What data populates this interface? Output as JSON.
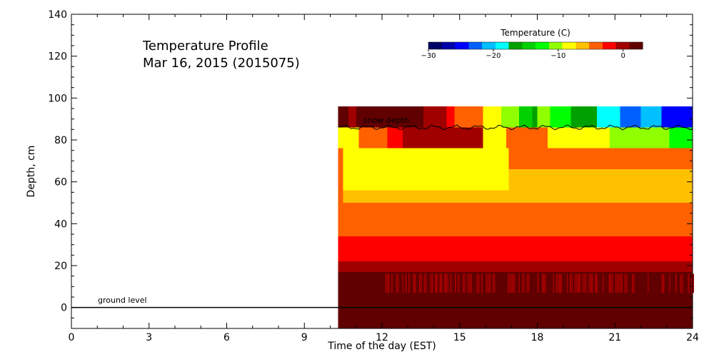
{
  "chart_data": {
    "type": "heatmap",
    "title_line1": "Temperature Profile",
    "title_line2": "Mar 16, 2015 (2015075)",
    "xlabel": "Time of the day (EST)",
    "ylabel": "Depth, cm",
    "xlim": [
      0,
      24
    ],
    "ylim": [
      -10,
      140
    ],
    "x_ticks": [
      0,
      3,
      6,
      9,
      12,
      15,
      18,
      21,
      24
    ],
    "y_ticks": [
      0,
      20,
      40,
      60,
      80,
      100,
      120,
      140
    ],
    "data_start_time": 10.3,
    "data_end_time": 24,
    "top_of_profile": 96,
    "colorbar": {
      "title": "Temperature (C)",
      "min": -30,
      "max": 3,
      "ticks": [
        -30,
        -20,
        -10,
        0
      ],
      "colors": [
        "#000066",
        "#0000a8",
        "#0000ff",
        "#0060ff",
        "#00c0ff",
        "#00ffff",
        "#00a000",
        "#00d000",
        "#00ff00",
        "#90ff00",
        "#ffff00",
        "#ffc000",
        "#ff6000",
        "#ff0000",
        "#a00000",
        "#600000"
      ]
    },
    "ground_level": {
      "depth": 0,
      "label": "ground level"
    },
    "snow_depth": {
      "label": "snow depth",
      "approx_depth": 86
    },
    "layers": [
      {
        "y0": -10,
        "y1": 7,
        "temp": 1.5
      },
      {
        "y0": 7,
        "y1": 17,
        "temp": 1.0,
        "variable": true
      },
      {
        "y0": 17,
        "y1": 22,
        "temp": -0.5
      },
      {
        "y0": 22,
        "y1": 34,
        "temp": -2
      },
      {
        "y0": 34,
        "y1": 50,
        "temp": -5
      },
      {
        "y0": 50,
        "y1": 76,
        "temp": -6
      },
      {
        "y0": 76,
        "y1": 86,
        "temp": -8
      }
    ],
    "segments": {
      "layer_50_76": [
        {
          "t0": 10.3,
          "t1": 10.5,
          "temp": -5
        },
        {
          "t0": 10.5,
          "t1": 16.9,
          "temp": -8,
          "y0": 56
        },
        {
          "t0": 16.9,
          "t1": 24,
          "temp": -5,
          "y0": 66
        }
      ],
      "layer_76_86": [
        {
          "t0": 10.3,
          "t1": 11.1,
          "temp": -8
        },
        {
          "t0": 11.1,
          "t1": 12.2,
          "temp": -5
        },
        {
          "t0": 12.2,
          "t1": 12.8,
          "temp": -2
        },
        {
          "t0": 12.8,
          "t1": 13.4,
          "temp": -1
        },
        {
          "t0": 13.4,
          "t1": 15.3,
          "temp": 0
        },
        {
          "t0": 15.3,
          "t1": 15.9,
          "temp": -1
        },
        {
          "t0": 15.9,
          "t1": 16.8,
          "temp": -8
        },
        {
          "t0": 16.8,
          "t1": 18.4,
          "temp": -5
        },
        {
          "t0": 18.4,
          "t1": 20.8,
          "temp": -8
        },
        {
          "t0": 20.8,
          "t1": 23.1,
          "temp": -11
        },
        {
          "t0": 23.1,
          "t1": 24,
          "temp": -12
        }
      ],
      "surface_86_96": [
        {
          "t0": 10.3,
          "t1": 10.7,
          "temp": 1.5
        },
        {
          "t0": 10.7,
          "t1": 11.0,
          "temp": 0
        },
        {
          "t0": 11.0,
          "t1": 13.2,
          "temp": 2.5
        },
        {
          "t0": 13.2,
          "t1": 13.6,
          "temp": 1.5
        },
        {
          "t0": 13.6,
          "t1": 14.0,
          "temp": 0
        },
        {
          "t0": 14.0,
          "t1": 14.5,
          "temp": -1
        },
        {
          "t0": 14.5,
          "t1": 14.8,
          "temp": -2
        },
        {
          "t0": 14.8,
          "t1": 15.9,
          "temp": -5
        },
        {
          "t0": 15.9,
          "t1": 16.6,
          "temp": -8
        },
        {
          "t0": 16.6,
          "t1": 17.3,
          "temp": -11
        },
        {
          "t0": 17.3,
          "t1": 17.8,
          "temp": -14
        },
        {
          "t0": 17.8,
          "t1": 18.0,
          "temp": -17
        },
        {
          "t0": 18.0,
          "t1": 18.5,
          "temp": -11
        },
        {
          "t0": 18.5,
          "t1": 19.3,
          "temp": -12
        },
        {
          "t0": 19.3,
          "t1": 20.3,
          "temp": -17
        },
        {
          "t0": 20.3,
          "t1": 21.2,
          "temp": -19
        },
        {
          "t0": 21.2,
          "t1": 22.0,
          "temp": -23
        },
        {
          "t0": 22.0,
          "t1": 22.8,
          "temp": -20
        },
        {
          "t0": 22.8,
          "t1": 24,
          "temp": -24
        }
      ]
    }
  }
}
